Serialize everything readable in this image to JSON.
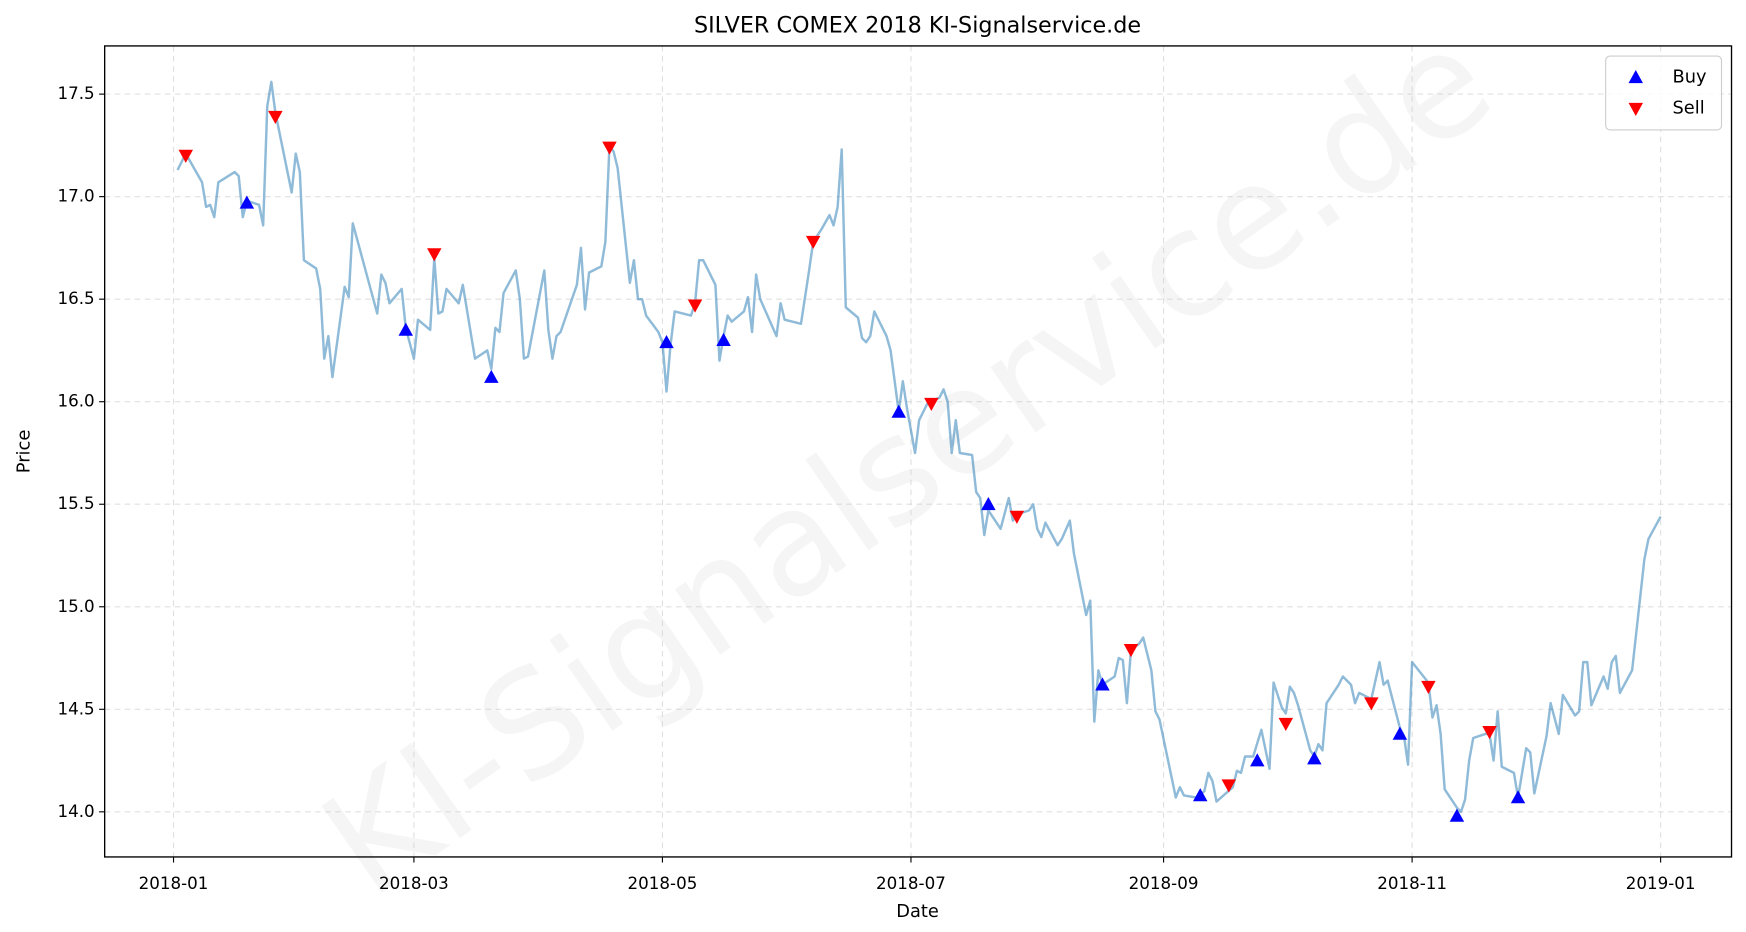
{
  "chart_data": {
    "type": "line",
    "title": "SILVER COMEX 2018 KI-Signalservice.de",
    "x_label": "Date",
    "y_label": "Price",
    "watermark": "KI-Signalservice.de",
    "grid": true,
    "legend": "upper right",
    "color": "#1f77b4",
    "opacity": 0.5,
    "xlim": [
      -16.9,
      382.4
    ],
    "ylim": [
      13.78,
      17.735
    ],
    "xticks": [
      {
        "value": 0,
        "label": "2018-01"
      },
      {
        "value": 59,
        "label": "2018-03"
      },
      {
        "value": 120,
        "label": "2018-05"
      },
      {
        "value": 181,
        "label": "2018-07"
      },
      {
        "value": 243,
        "label": "2018-09"
      },
      {
        "value": 304,
        "label": "2018-11"
      },
      {
        "value": 365,
        "label": "2019-01"
      }
    ],
    "yticks": [
      {
        "value": 14,
        "label": "14.0"
      },
      14.5,
      {
        "value": 15,
        "label": "15.0"
      },
      15.5,
      {
        "value": 16,
        "label": "16.0"
      },
      16.5,
      {
        "value": 17,
        "label": "17.0"
      },
      17.5
    ],
    "x": [
      1,
      3,
      7,
      8,
      9,
      10,
      11,
      15,
      16,
      17,
      18,
      21,
      22,
      23,
      24,
      25,
      29,
      30,
      31,
      32,
      35,
      36,
      37,
      38,
      39,
      42,
      43,
      44,
      50,
      51,
      52,
      53,
      56,
      57,
      59,
      60,
      63,
      64,
      65,
      66,
      67,
      70,
      71,
      74,
      77,
      78,
      79,
      80,
      81,
      84,
      85,
      86,
      87,
      91,
      92,
      93,
      94,
      95,
      99,
      100,
      101,
      102,
      105,
      106,
      107,
      108,
      109,
      112,
      113,
      114,
      115,
      116,
      119,
      120,
      121,
      122,
      123,
      127,
      128,
      129,
      130,
      133,
      134,
      135,
      136,
      137,
      140,
      141,
      142,
      143,
      144,
      148,
      149,
      150,
      154,
      156,
      157,
      159,
      161,
      162,
      163,
      164,
      165,
      168,
      169,
      170,
      171,
      172,
      175,
      176,
      177,
      178,
      179,
      180,
      182,
      183,
      185,
      188,
      189,
      190,
      191,
      192,
      193,
      196,
      197,
      198,
      199,
      200,
      203,
      205,
      206,
      207,
      210,
      211,
      212,
      213,
      214,
      217,
      218,
      220,
      221,
      224,
      225,
      226,
      227,
      228,
      231,
      232,
      233,
      234,
      235,
      237,
      238,
      240,
      241,
      242,
      246,
      247,
      248,
      251,
      253,
      254,
      255,
      256,
      260,
      261,
      262,
      263,
      265,
      267,
      269,
      270,
      272,
      273,
      274,
      275,
      276,
      279,
      280,
      281,
      282,
      283,
      286,
      287,
      289,
      290,
      291,
      294,
      296,
      297,
      298,
      301,
      302,
      303,
      304,
      306,
      308,
      309,
      310,
      311,
      312,
      315,
      316,
      317,
      318,
      319,
      322,
      323,
      324,
      325,
      326,
      329,
      330,
      332,
      333,
      334,
      337,
      338,
      340,
      341,
      344,
      345,
      346,
      347,
      348,
      351,
      352,
      353,
      354,
      355,
      358,
      361,
      362,
      365
    ],
    "values": [
      17.13,
      17.21,
      17.07,
      16.95,
      16.96,
      16.9,
      17.07,
      17.12,
      17.1,
      16.9,
      16.98,
      16.96,
      16.86,
      17.44,
      17.56,
      17.41,
      17.02,
      17.21,
      17.12,
      16.69,
      16.65,
      16.55,
      16.21,
      16.32,
      16.12,
      16.56,
      16.51,
      16.87,
      16.43,
      16.62,
      16.58,
      16.48,
      16.55,
      16.36,
      16.21,
      16.4,
      16.35,
      16.7,
      16.43,
      16.44,
      16.55,
      16.48,
      16.57,
      16.21,
      16.25,
      16.16,
      16.36,
      16.34,
      16.53,
      16.64,
      16.5,
      16.21,
      16.22,
      16.64,
      16.35,
      16.21,
      16.32,
      16.34,
      16.57,
      16.75,
      16.45,
      16.63,
      16.66,
      16.78,
      17.25,
      17.22,
      17.14,
      16.58,
      16.69,
      16.5,
      16.5,
      16.42,
      16.34,
      16.29,
      16.05,
      16.28,
      16.44,
      16.42,
      16.48,
      16.69,
      16.69,
      16.57,
      16.2,
      16.32,
      16.42,
      16.39,
      16.44,
      16.51,
      16.34,
      16.62,
      16.5,
      16.32,
      16.48,
      16.4,
      16.38,
      16.64,
      16.78,
      16.84,
      16.91,
      16.86,
      16.95,
      17.23,
      16.46,
      16.41,
      16.31,
      16.29,
      16.32,
      16.44,
      16.32,
      16.25,
      16.1,
      15.95,
      16.1,
      15.97,
      15.75,
      15.91,
      15.99,
      16.02,
      16.06,
      16.0,
      15.75,
      15.91,
      15.75,
      15.74,
      15.56,
      15.53,
      15.35,
      15.47,
      15.38,
      15.53,
      15.42,
      15.45,
      15.47,
      15.5,
      15.38,
      15.34,
      15.41,
      15.3,
      15.33,
      15.42,
      15.26,
      14.96,
      15.03,
      14.44,
      14.69,
      14.62,
      14.66,
      14.75,
      14.74,
      14.53,
      14.79,
      14.82,
      14.85,
      14.69,
      14.49,
      14.45,
      14.07,
      14.12,
      14.08,
      14.07,
      14.1,
      14.19,
      14.15,
      14.05,
      14.12,
      14.2,
      14.19,
      14.27,
      14.27,
      14.4,
      14.21,
      14.63,
      14.51,
      14.48,
      14.61,
      14.58,
      14.52,
      14.3,
      14.27,
      14.33,
      14.3,
      14.53,
      14.62,
      14.66,
      14.62,
      14.53,
      14.58,
      14.55,
      14.73,
      14.62,
      14.64,
      14.41,
      14.37,
      14.23,
      14.73,
      14.68,
      14.63,
      14.46,
      14.52,
      14.38,
      14.11,
      14.02,
      14.0,
      14.06,
      14.25,
      14.36,
      14.38,
      14.38,
      14.25,
      14.49,
      14.22,
      14.19,
      14.07,
      14.31,
      14.29,
      14.09,
      14.37,
      14.53,
      14.38,
      14.57,
      14.47,
      14.49,
      14.73,
      14.73,
      14.52,
      14.66,
      14.6,
      14.73,
      14.76,
      14.58,
      14.69,
      15.23,
      15.33,
      15.44
    ],
    "markers": [
      {
        "name": "Buy",
        "color": "#0000ff",
        "marker": "^",
        "x": [
          18,
          57,
          78,
          121,
          135,
          178,
          200,
          228,
          252,
          266,
          280,
          301,
          315,
          330
        ],
        "values": [
          16.97,
          16.35,
          16.12,
          16.29,
          16.3,
          15.95,
          15.5,
          14.62,
          14.08,
          14.25,
          14.26,
          14.38,
          13.98,
          14.07
        ]
      },
      {
        "name": "Sell",
        "color": "#ff0000",
        "marker": "v",
        "x": [
          3,
          25,
          64,
          107,
          128,
          157,
          186,
          207,
          235,
          259,
          273,
          294,
          308,
          323
        ],
        "values": [
          17.2,
          17.39,
          16.72,
          17.24,
          16.47,
          16.78,
          15.99,
          15.44,
          14.79,
          14.13,
          14.43,
          14.53,
          14.61,
          14.39
        ]
      }
    ]
  }
}
